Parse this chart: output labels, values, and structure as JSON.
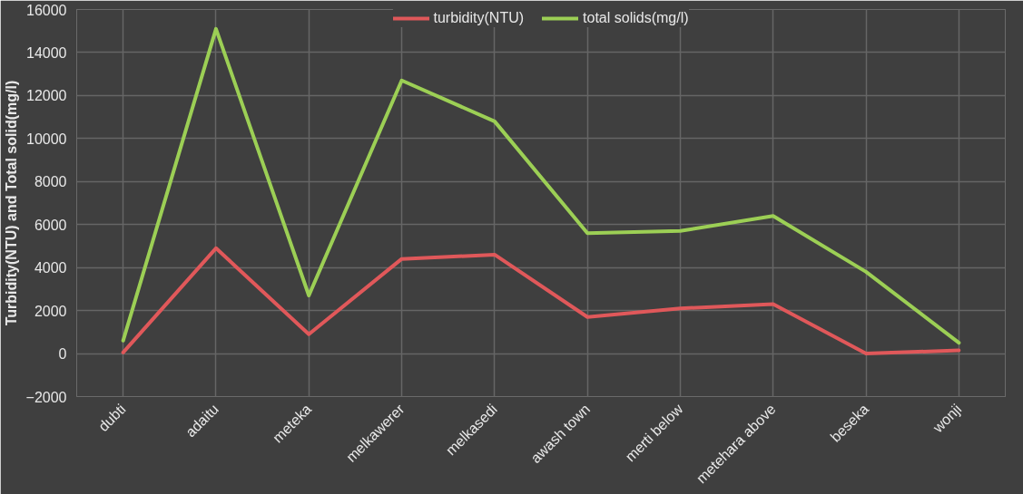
{
  "chart_data": {
    "type": "line",
    "ylabel": "Turbidity(NTU) and Total solid(mg/l)",
    "categories": [
      "dubti",
      "adaitu",
      "meteka",
      "melkawerer",
      "melkasedi",
      "awash town",
      "merti below",
      "metehara above",
      "beseka",
      "wonji"
    ],
    "series": [
      {
        "name": "turbidity(NTU)",
        "color": "#e0585a",
        "values": [
          50,
          4900,
          900,
          4400,
          4600,
          1700,
          2100,
          2300,
          0,
          150
        ]
      },
      {
        "name": "total solids(mg/l)",
        "color": "#9ccf55",
        "values": [
          600,
          15100,
          2700,
          12700,
          10800,
          5600,
          5700,
          6400,
          3800,
          500
        ]
      }
    ],
    "ylim": [
      -2000,
      16000
    ],
    "yticks": [
      -2000,
      0,
      2000,
      4000,
      6000,
      8000,
      10000,
      12000,
      14000,
      16000
    ],
    "grid": true,
    "legend": "top",
    "marker": "none",
    "line_style": "solid"
  }
}
